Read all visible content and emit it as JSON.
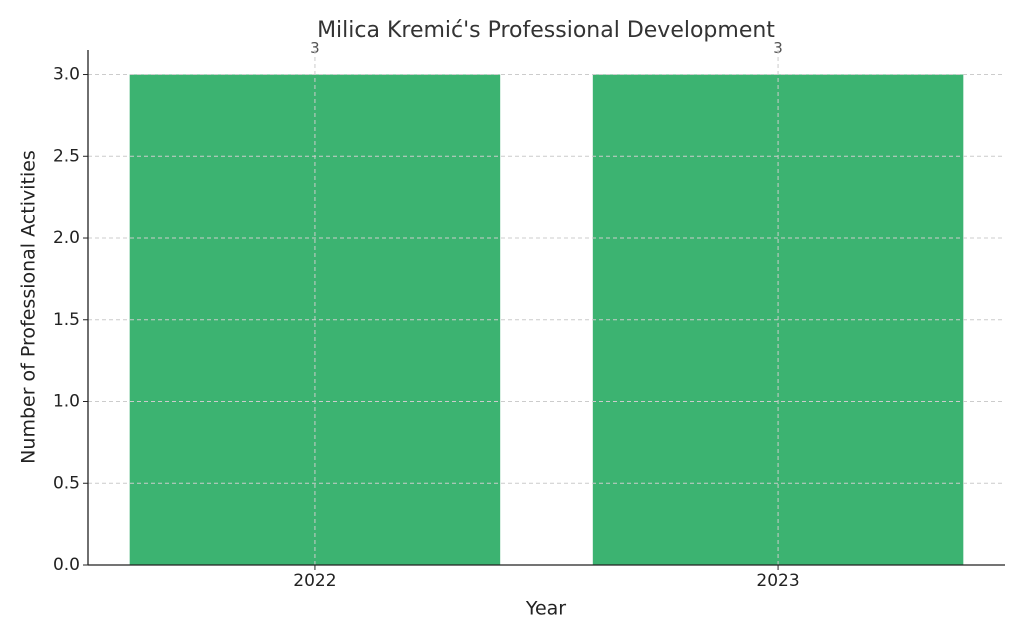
{
  "chart_data": {
    "type": "bar",
    "title": "Milica Kremić's Professional Development",
    "x_label": "Year",
    "y_label": "Number of Professional Activities",
    "categories": [
      "2022",
      "2023"
    ],
    "values": [
      3,
      3
    ],
    "color": "#3cb371",
    "ylim": [
      0,
      3.15
    ],
    "yticks": [
      {
        "value": 0,
        "label": "0.0"
      },
      {
        "value": 0.5,
        "label": "0.5"
      },
      {
        "value": 1,
        "label": "1.0"
      },
      {
        "value": 1.5,
        "label": "1.5"
      },
      {
        "value": 2,
        "label": "2.0"
      },
      {
        "value": 2.5,
        "label": "2.5"
      },
      {
        "value": 3,
        "label": "3.0"
      }
    ],
    "grid": true
  }
}
